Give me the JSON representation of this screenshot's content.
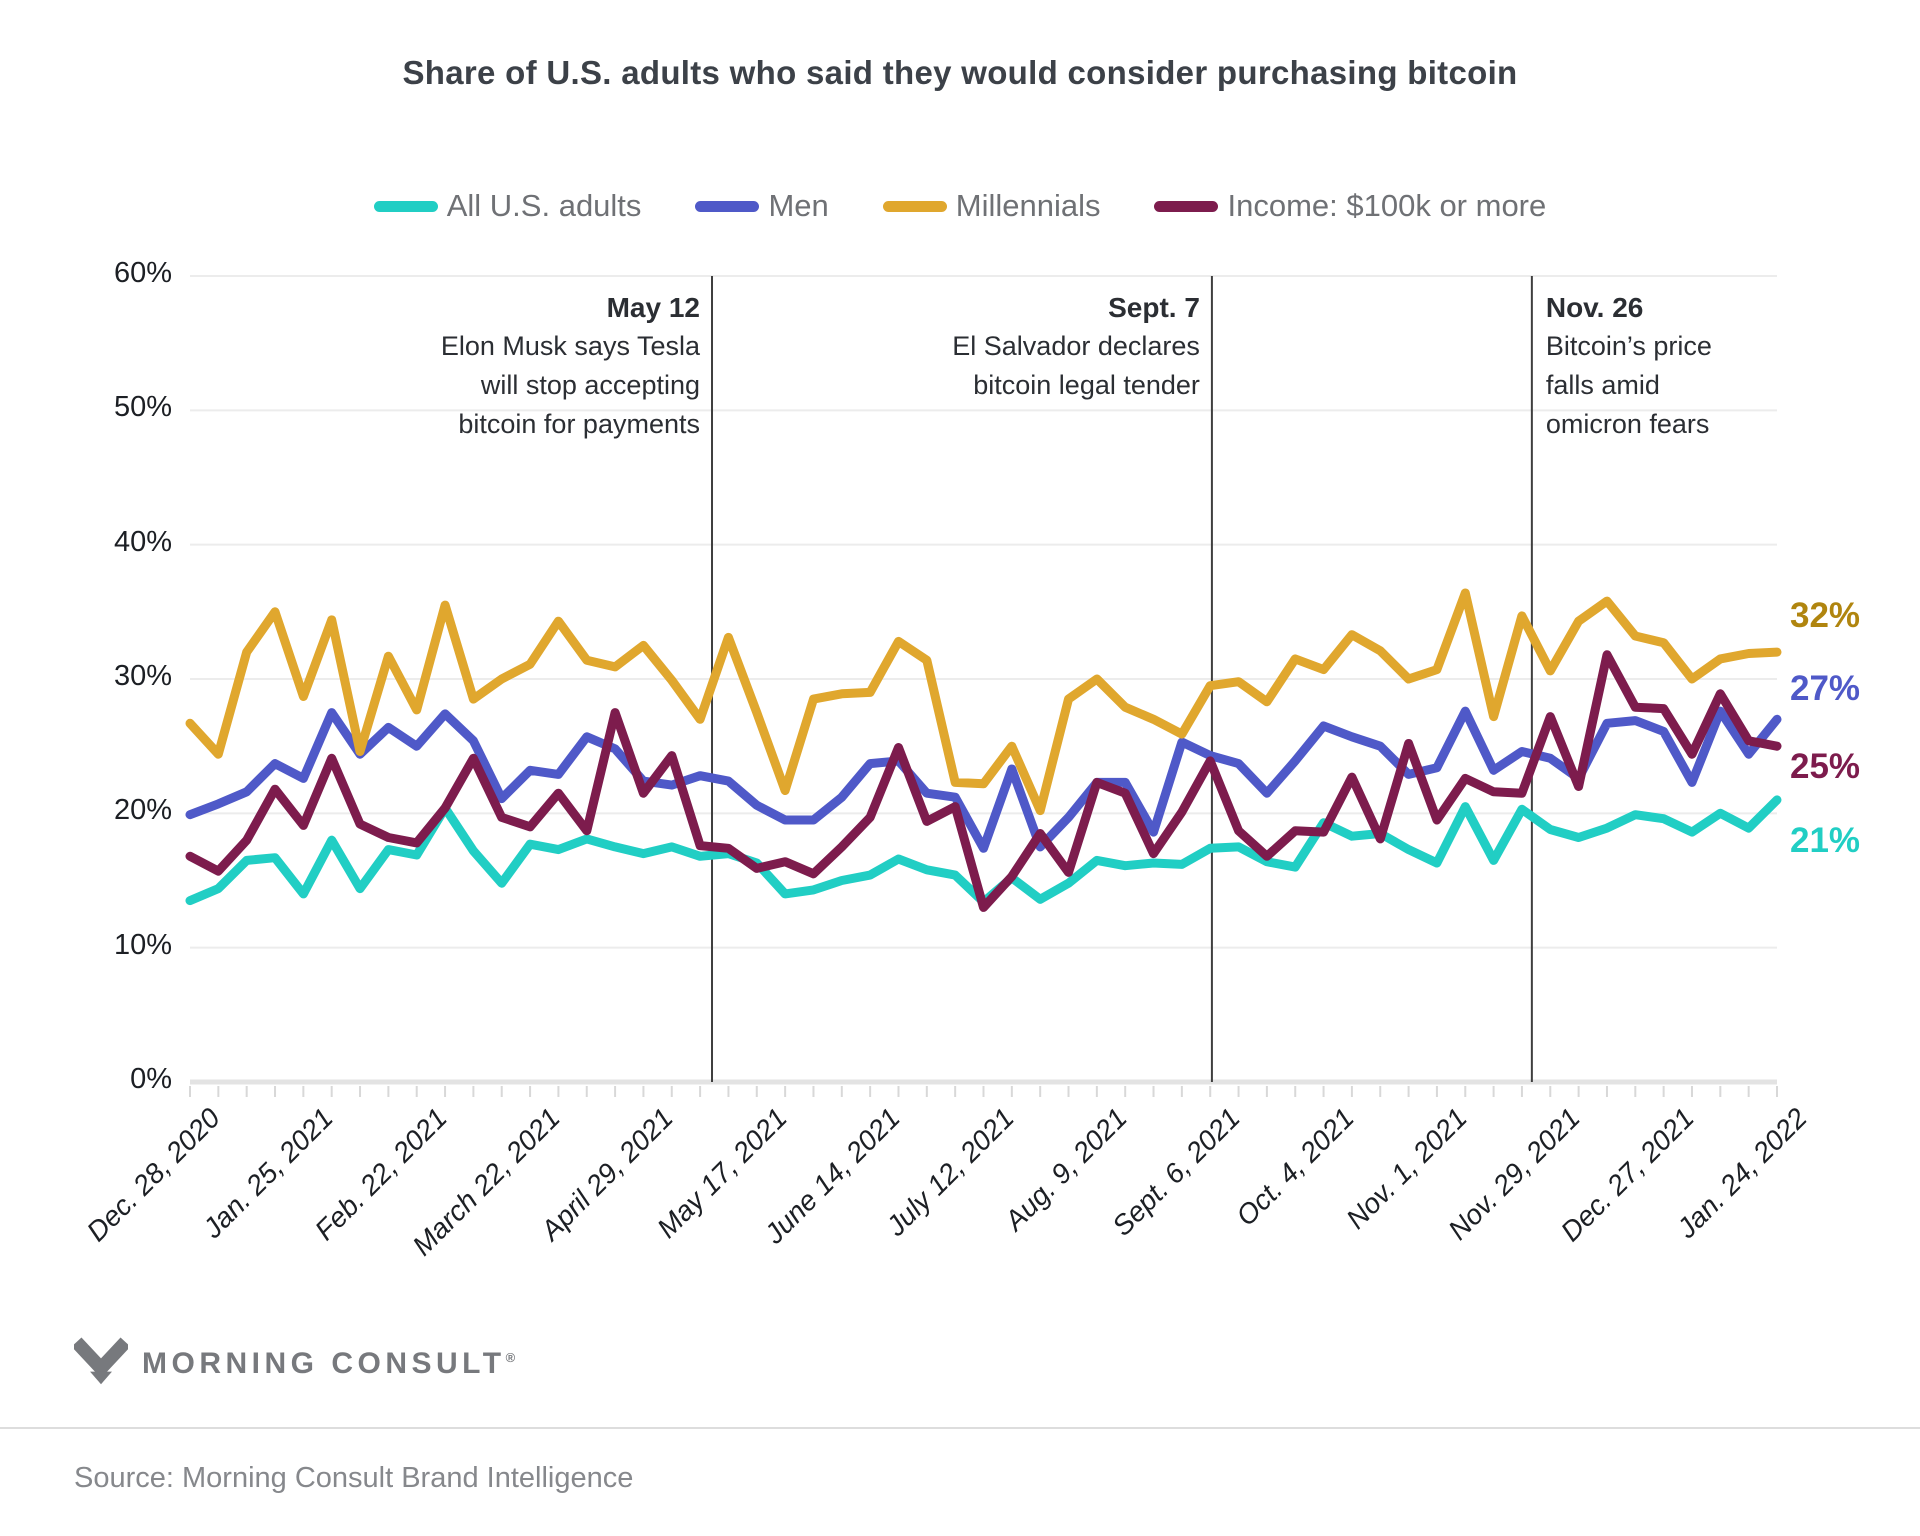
{
  "title": "Share of U.S. adults who said they would consider purchasing bitcoin",
  "legend": [
    {
      "label": "All U.S. adults",
      "color": "#21CEC4"
    },
    {
      "label": "Men",
      "color": "#4F59C8"
    },
    {
      "label": "Millennials",
      "color": "#E0A72E"
    },
    {
      "label": "Income: $100k or more",
      "color": "#7D1C4D"
    }
  ],
  "chart_data": {
    "type": "line",
    "title": "Share of U.S. adults who said they would consider purchasing bitcoin",
    "xlabel": "",
    "ylabel": "",
    "ylim": [
      0,
      60
    ],
    "ytick_labels": [
      "0%",
      "10%",
      "20%",
      "30%",
      "40%",
      "50%",
      "60%"
    ],
    "grid": "horizontal",
    "legend_position": "top",
    "n_points": 57,
    "points_per_tick": 4,
    "x_tick_labels": [
      "Dec. 28, 2020",
      "Jan. 25, 2021",
      "Feb. 22, 2021",
      "March 22, 2021",
      "April 29, 2021",
      "May 17, 2021",
      "June 14, 2021",
      "July 12, 2021",
      "Aug. 9, 2021",
      "Sept. 6, 2021",
      "Oct. 4, 2021",
      "Nov. 1, 2021",
      "Nov. 29, 2021",
      "Dec. 27, 2021",
      "Jan. 24, 2022"
    ],
    "series": [
      {
        "name": "All U.S. adults",
        "color": "#21CEC4",
        "end_label": "21%",
        "end_label_color": "#21CEC4",
        "values": [
          13.5,
          14.4,
          16.5,
          16.7,
          14.0,
          18.0,
          14.4,
          17.3,
          16.9,
          20.4,
          17.2,
          14.8,
          17.7,
          17.3,
          18.1,
          17.5,
          17.0,
          17.5,
          16.8,
          17.0,
          16.3,
          14.0,
          14.3,
          15.0,
          15.4,
          16.6,
          15.8,
          15.4,
          13.4,
          15.2,
          13.6,
          14.8,
          16.5,
          16.1,
          16.3,
          16.2,
          17.4,
          17.5,
          16.4,
          16.0,
          19.3,
          18.3,
          18.5,
          17.3,
          16.3,
          20.5,
          16.5,
          20.3,
          18.8,
          18.2,
          18.9,
          19.9,
          19.6,
          18.6,
          20.0,
          18.9,
          21.0
        ]
      },
      {
        "name": "Men",
        "color": "#4F59C8",
        "end_label": "27%",
        "end_label_color": "#4F59C8",
        "values": [
          19.9,
          20.7,
          21.6,
          23.7,
          22.6,
          27.5,
          24.4,
          26.4,
          25.0,
          27.4,
          25.4,
          21.1,
          23.2,
          22.9,
          25.7,
          24.8,
          22.4,
          22.1,
          22.8,
          22.4,
          20.6,
          19.5,
          19.5,
          21.2,
          23.7,
          23.9,
          21.5,
          21.2,
          17.4,
          23.3,
          17.5,
          19.7,
          22.3,
          22.3,
          18.6,
          25.3,
          24.3,
          23.7,
          21.5,
          23.9,
          26.5,
          25.7,
          25.0,
          22.9,
          23.4,
          27.6,
          23.2,
          24.6,
          24.1,
          22.6,
          26.7,
          26.9,
          26.1,
          22.3,
          27.6,
          24.4,
          27.0
        ]
      },
      {
        "name": "Millennials",
        "color": "#E0A72E",
        "end_label": "32%",
        "end_label_color": "#B0850F",
        "values": [
          26.7,
          24.4,
          32.0,
          35.0,
          28.7,
          34.4,
          24.6,
          31.7,
          27.7,
          35.5,
          28.5,
          30.0,
          31.1,
          34.3,
          31.4,
          30.9,
          32.5,
          29.9,
          27.0,
          33.1,
          27.5,
          21.7,
          28.5,
          28.9,
          29.0,
          32.8,
          31.4,
          22.3,
          22.2,
          25.0,
          20.2,
          28.5,
          30.0,
          27.9,
          27.0,
          25.9,
          29.5,
          29.8,
          28.3,
          31.5,
          30.7,
          33.3,
          32.1,
          30.0,
          30.7,
          36.4,
          27.2,
          34.7,
          30.6,
          34.3,
          35.8,
          33.2,
          32.7,
          30.0,
          31.5,
          31.9,
          32.0
        ]
      },
      {
        "name": "Income: $100k or more",
        "color": "#7D1C4D",
        "end_label": "25%",
        "end_label_color": "#7D1C4D",
        "values": [
          16.8,
          15.7,
          18.0,
          21.8,
          19.1,
          24.1,
          19.2,
          18.2,
          17.8,
          20.4,
          24.1,
          19.7,
          19.0,
          21.5,
          18.7,
          27.5,
          21.5,
          24.3,
          17.6,
          17.4,
          15.9,
          16.4,
          15.5,
          17.5,
          19.7,
          24.9,
          19.4,
          20.5,
          13.0,
          15.3,
          18.5,
          15.6,
          22.3,
          21.5,
          17.0,
          20.1,
          23.9,
          18.7,
          16.8,
          18.7,
          18.6,
          22.7,
          18.1,
          25.2,
          19.5,
          22.6,
          21.6,
          21.5,
          27.2,
          22.0,
          31.8,
          27.9,
          27.8,
          24.4,
          28.9,
          25.4,
          25.0
        ]
      }
    ],
    "annotations": [
      {
        "heading": "May 12",
        "lines": [
          "Elon Musk says Tesla",
          "will stop accepting",
          "bitcoin for payments"
        ],
        "x_index": 18.42,
        "align": "right"
      },
      {
        "heading": "Sept. 7",
        "lines": [
          "El Salvador declares",
          "bitcoin legal tender"
        ],
        "x_index": 36.06,
        "align": "right"
      },
      {
        "heading": "Nov. 26",
        "lines": [
          "Bitcoin’s price",
          "falls amid",
          "omicron fears"
        ],
        "x_index": 47.35,
        "align": "left"
      }
    ]
  },
  "footer": {
    "logo_text": "MORNING CONSULT",
    "registered_mark": "®",
    "source": "Source: Morning Consult Brand Intelligence"
  }
}
